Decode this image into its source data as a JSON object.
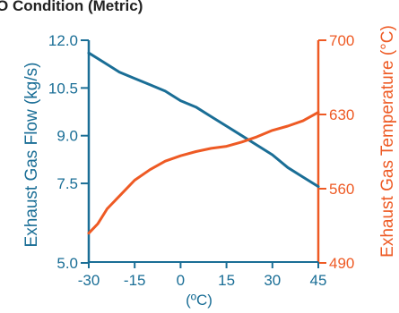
{
  "chart_data": {
    "type": "line",
    "title": "O Condition (Metric)",
    "xlabel": "(ºC)",
    "x_ticks": [
      -30,
      -15,
      0,
      15,
      30,
      45
    ],
    "x_tick_labels": [
      "-30",
      "-15",
      "0",
      "15",
      "30",
      "45"
    ],
    "xlim": [
      -30,
      45
    ],
    "y_left": {
      "label": "Exhaust Gas Flow (kg/s)",
      "lim": [
        5.0,
        12.0
      ],
      "ticks": [
        5.0,
        7.5,
        9.0,
        10.5,
        12.0
      ],
      "tick_labels": [
        "5.0",
        "7.5",
        "9.0",
        "10.5",
        "12.0"
      ],
      "color": "#1a6e96"
    },
    "y_right": {
      "label": "Exhaust Gas Temperature (°C)",
      "lim": [
        490,
        700
      ],
      "ticks": [
        490,
        560,
        630,
        700
      ],
      "tick_labels": [
        "490",
        "560",
        "630",
        "700"
      ],
      "color": "#ee5a24"
    },
    "series": [
      {
        "axis": "left",
        "color": "#1a6e96",
        "x": [
          -30,
          -25,
          -20,
          -15,
          -10,
          -5,
          0,
          5,
          10,
          15,
          20,
          25,
          30,
          35,
          40,
          45
        ],
        "y": [
          11.6,
          11.3,
          11.0,
          10.8,
          10.6,
          10.4,
          10.1,
          9.9,
          9.6,
          9.3,
          9.0,
          8.7,
          8.4,
          8.0,
          7.7,
          7.4
        ]
      },
      {
        "axis": "right",
        "color": "#ee5a24",
        "x": [
          -30,
          -27,
          -24,
          -20,
          -15,
          -10,
          -5,
          0,
          5,
          10,
          15,
          20,
          25,
          30,
          35,
          40,
          45
        ],
        "y": [
          518,
          527,
          541,
          553,
          568,
          578,
          586,
          591,
          595,
          598,
          600,
          604,
          609,
          615,
          619,
          624,
          632
        ]
      }
    ]
  }
}
